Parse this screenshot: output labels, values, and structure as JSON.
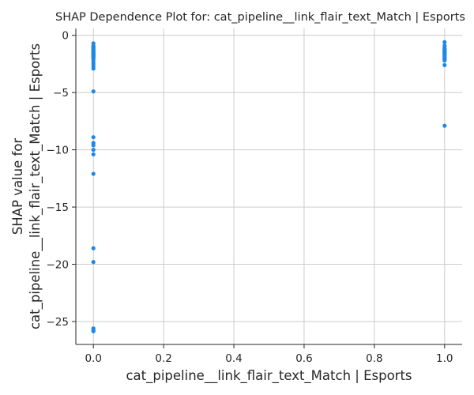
{
  "chart_data": {
    "type": "scatter",
    "title": "SHAP Dependence Plot for: cat_pipeline__link_flair_text_Match | Esports",
    "xlabel": "cat_pipeline__link_flair_text_Match | Esports",
    "ylabel_lines": [
      "SHAP value for",
      "cat_pipeline__link_flair_text_Match | Esports"
    ],
    "xlim": [
      -0.05,
      1.05
    ],
    "ylim": [
      -27.0,
      0.6
    ],
    "xticks": [
      0.0,
      0.2,
      0.4,
      0.6,
      0.8,
      1.0
    ],
    "xtick_labels": [
      "0.0",
      "0.2",
      "0.4",
      "0.6",
      "0.8",
      "1.0"
    ],
    "yticks": [
      0,
      -5,
      -10,
      -15,
      -20,
      -25
    ],
    "ytick_labels": [
      "0",
      "−5",
      "−10",
      "−15",
      "−20",
      "−25"
    ],
    "grid": true,
    "point_color": "#1e88e5",
    "series": [
      {
        "x": [
          0,
          0,
          0,
          0,
          0,
          0,
          0,
          0,
          0,
          0,
          0,
          0,
          0,
          0,
          0,
          0,
          0,
          0,
          0,
          0,
          0,
          0,
          0,
          0,
          0,
          0,
          0,
          0,
          0,
          0,
          0,
          0,
          0,
          0,
          0,
          0,
          1,
          1,
          1,
          1,
          1,
          1,
          1,
          1,
          1,
          1,
          1,
          1,
          1,
          1,
          1,
          1,
          1,
          1
        ],
        "y": [
          -0.7,
          -0.9,
          -1.1,
          -1.2,
          -1.3,
          -1.4,
          -1.5,
          -1.6,
          -1.7,
          -1.8,
          -1.9,
          -2.0,
          -2.1,
          -2.3,
          -2.5,
          -2.7,
          -2.9,
          -1.0,
          -1.55,
          -1.75,
          -4.9,
          -8.9,
          -9.4,
          -9.6,
          -10.0,
          -10.4,
          -12.1,
          -18.6,
          -19.8,
          -25.6,
          -25.75,
          -25.85,
          -1.25,
          -1.45,
          -1.65,
          -1.85,
          -0.6,
          -0.9,
          -1.1,
          -1.2,
          -1.3,
          -1.4,
          -1.5,
          -1.6,
          -1.7,
          -1.8,
          -1.9,
          -2.0,
          -2.1,
          -2.2,
          -2.6,
          -7.9,
          -1.35,
          -1.55
        ]
      }
    ]
  }
}
